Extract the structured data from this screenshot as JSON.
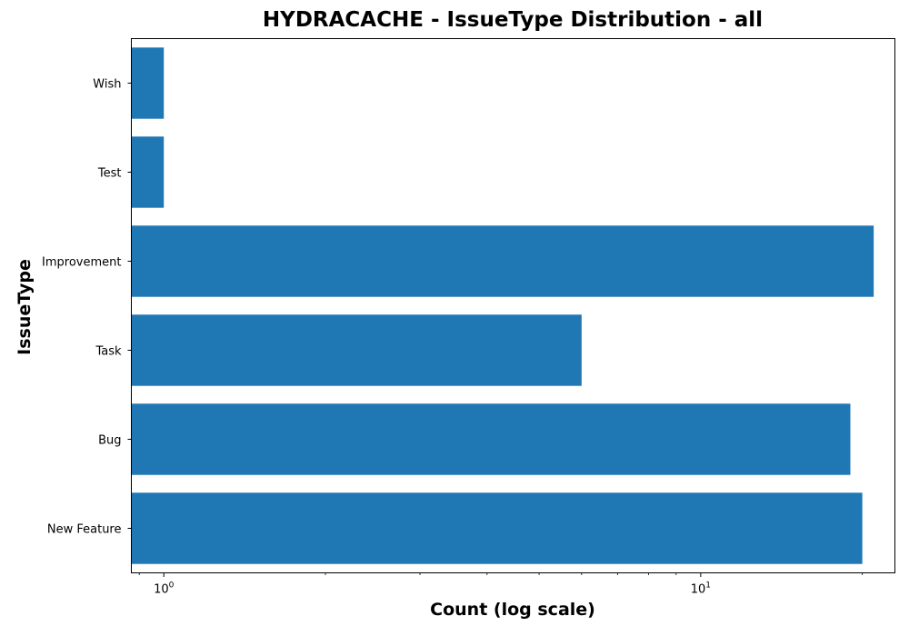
{
  "chart_data": {
    "type": "bar",
    "orientation": "horizontal",
    "title": "HYDRACACHE - IssueType Distribution - all",
    "xlabel": "Count (log scale)",
    "ylabel": "IssueType",
    "xscale": "log",
    "xlim": [
      0.87,
      23
    ],
    "categories": [
      "New Feature",
      "Bug",
      "Task",
      "Improvement",
      "Test",
      "Wish"
    ],
    "values": [
      20,
      19,
      6,
      21,
      1,
      1
    ],
    "major_ticks": [
      {
        "value": 1,
        "label": "10^0"
      },
      {
        "value": 10,
        "label": "10^1"
      }
    ],
    "grid": false,
    "bar_color": "#1f77b4"
  }
}
